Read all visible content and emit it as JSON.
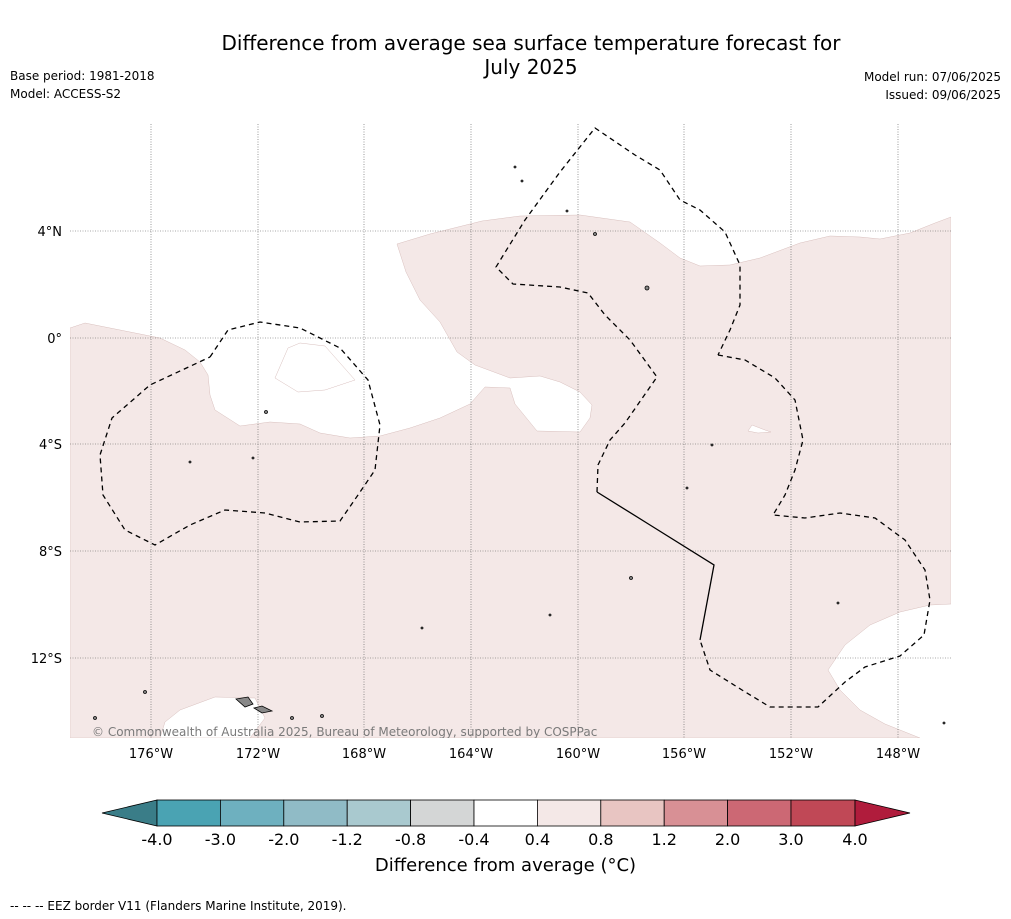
{
  "title": "Difference from average sea surface temperature forecast for July 2025",
  "title_line1": "Difference from average sea surface temperature forecast for",
  "title_line2": "July 2025",
  "base_period": "Base period: 1981-2018",
  "model": "Model: ACCESS-S2",
  "model_run": "Model run: 07/06/2025",
  "issued": "Issued: 09/06/2025",
  "map": {
    "lat_labels": [
      "4°N",
      "0°",
      "4°S",
      "8°S",
      "12°S"
    ],
    "lon_labels": [
      "176°W",
      "172°W",
      "168°W",
      "164°W",
      "160°W",
      "156°W",
      "152°W",
      "148°W"
    ],
    "copyright": "© Commonwealth of Australia 2025, Bureau of Meteorology, supported by COSPPac",
    "anomaly_fill_color": "#f4e8e7",
    "neutral_fill_color": "#ffffff"
  },
  "colorbar": {
    "title": "Difference from average (°C)",
    "tick_labels": [
      "-4.0",
      "-3.0",
      "-2.0",
      "-1.2",
      "-0.8",
      "-0.4",
      "0.4",
      "0.8",
      "1.2",
      "2.0",
      "3.0",
      "4.0"
    ],
    "colors": [
      "#3a7d88",
      "#4aa3b3",
      "#6eb0bf",
      "#90bbc6",
      "#a9c9cf",
      "#d4d6d6",
      "#ffffff",
      "#f4e8e7",
      "#e8c5c2",
      "#d89095",
      "#cc6874",
      "#c04856",
      "#b01c3c"
    ]
  },
  "footer": "-- --  -- EEZ border V11 (Flanders Marine Institute, 2019)."
}
